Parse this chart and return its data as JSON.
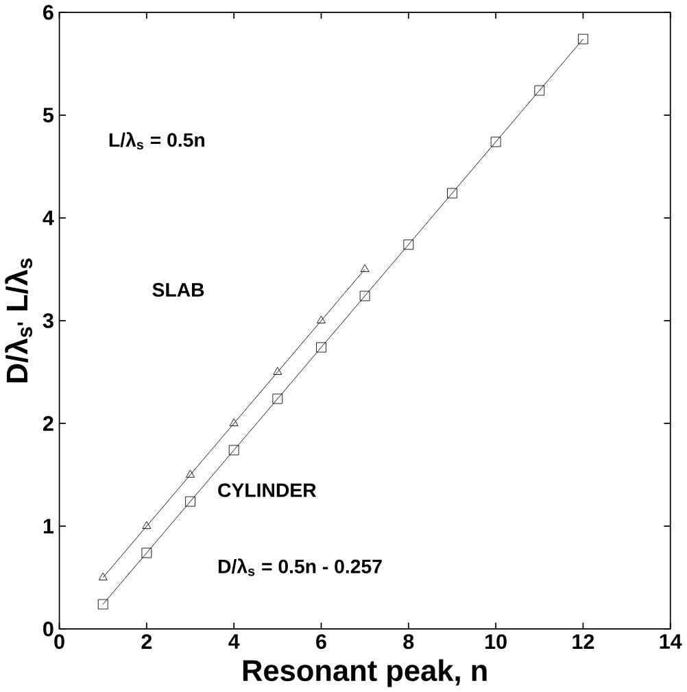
{
  "chart_data": {
    "type": "line",
    "xlabel": "Resonant peak, n",
    "ylabel": "D/λ$_{s'}$  L/λ$_{s}$",
    "xlim": [
      0,
      14
    ],
    "xticks": [
      0,
      2,
      4,
      6,
      8,
      10,
      12,
      14
    ],
    "ylim": [
      0,
      6
    ],
    "yticks": [
      0,
      1,
      2,
      3,
      4,
      5,
      6
    ],
    "series": [
      {
        "color": "#000000",
        "marker": "triangle",
        "x": [
          1,
          2,
          3,
          4,
          5,
          6,
          7
        ],
        "values": [
          0.5,
          1.0,
          1.5,
          2.0,
          2.5,
          3.0,
          3.5
        ]
      },
      {
        "color": "#000000",
        "marker": "square",
        "x": [
          1,
          2,
          3,
          4,
          5,
          6,
          7,
          8,
          9,
          10,
          11,
          12
        ],
        "values": [
          0.24,
          0.74,
          1.24,
          1.74,
          2.24,
          2.74,
          3.24,
          3.74,
          4.24,
          4.74,
          5.24,
          5.74
        ]
      }
    ],
    "annotations": [
      "L/λ$_{s}$ = 0.5n",
      "SLAB",
      "CYLINDER",
      "D/λ$_{s}$ = 0.5n - 0.257"
    ],
    "line_style": "solid",
    "grid": false
  }
}
